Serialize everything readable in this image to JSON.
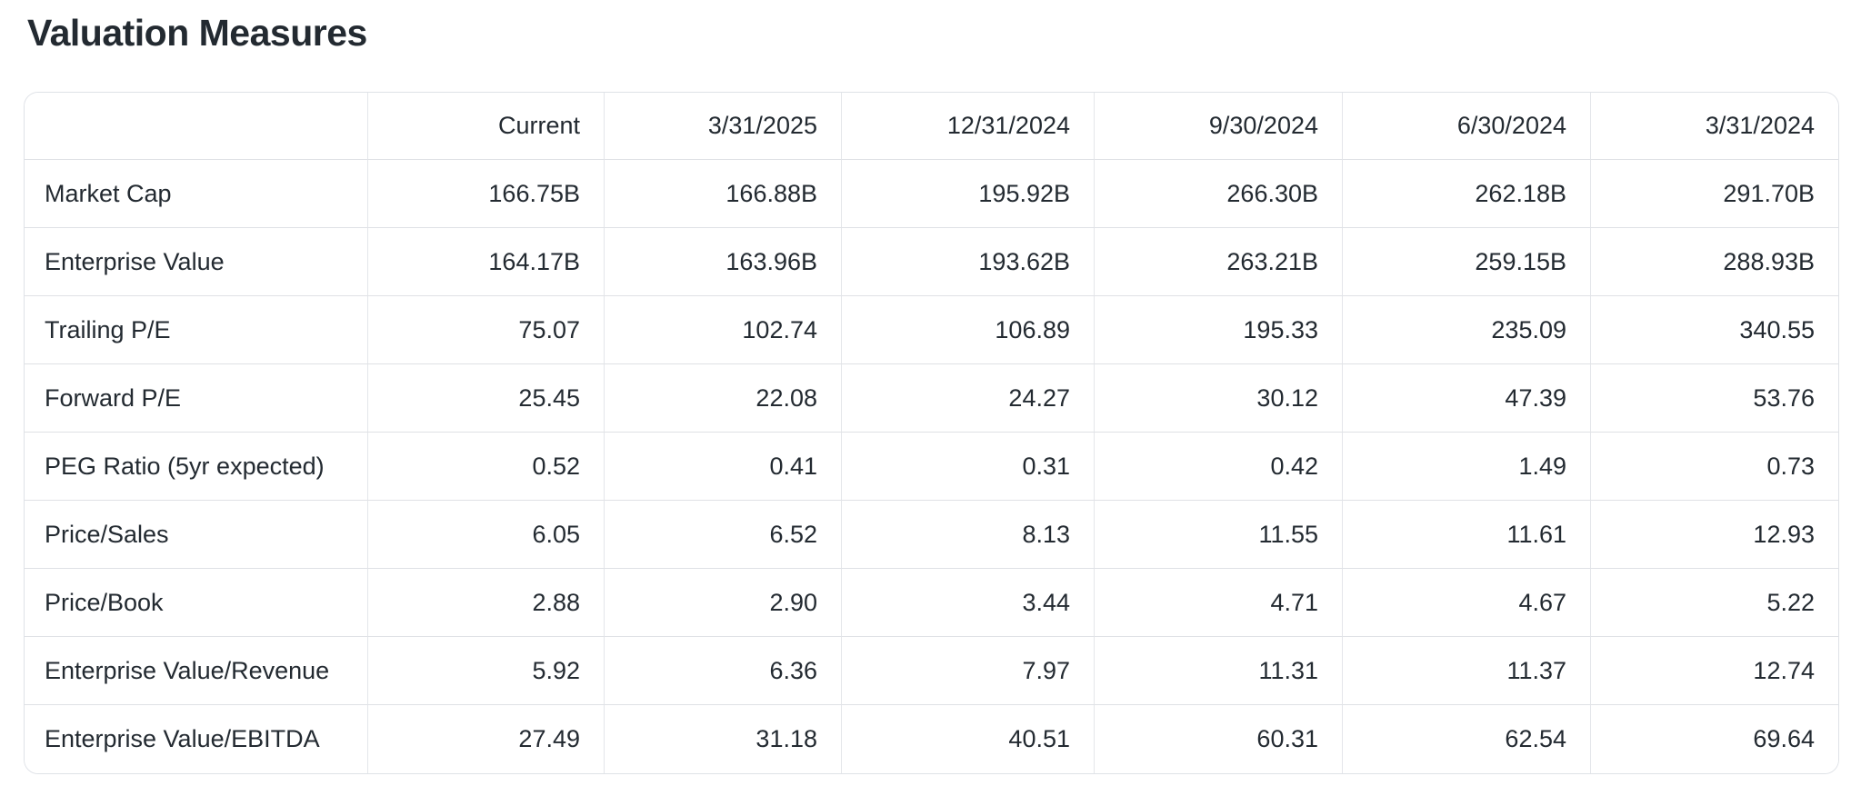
{
  "title": "Valuation Measures",
  "colors": {
    "text": "#232a31",
    "outer_border": "#dfe2e7",
    "column_divider": "#e4e6ea",
    "row_divider": "#dfe1e5",
    "background": "#ffffff"
  },
  "table": {
    "columns": [
      "",
      "Current",
      "3/31/2025",
      "12/31/2024",
      "9/30/2024",
      "6/30/2024",
      "3/31/2024"
    ],
    "rows": [
      {
        "label": "Market Cap",
        "values": [
          "166.75B",
          "166.88B",
          "195.92B",
          "266.30B",
          "262.18B",
          "291.70B"
        ]
      },
      {
        "label": "Enterprise Value",
        "values": [
          "164.17B",
          "163.96B",
          "193.62B",
          "263.21B",
          "259.15B",
          "288.93B"
        ]
      },
      {
        "label": "Trailing P/E",
        "values": [
          "75.07",
          "102.74",
          "106.89",
          "195.33",
          "235.09",
          "340.55"
        ]
      },
      {
        "label": "Forward P/E",
        "values": [
          "25.45",
          "22.08",
          "24.27",
          "30.12",
          "47.39",
          "53.76"
        ]
      },
      {
        "label": "PEG Ratio (5yr expected)",
        "values": [
          "0.52",
          "0.41",
          "0.31",
          "0.42",
          "1.49",
          "0.73"
        ]
      },
      {
        "label": "Price/Sales",
        "values": [
          "6.05",
          "6.52",
          "8.13",
          "11.55",
          "11.61",
          "12.93"
        ]
      },
      {
        "label": "Price/Book",
        "values": [
          "2.88",
          "2.90",
          "3.44",
          "4.71",
          "4.67",
          "5.22"
        ]
      },
      {
        "label": "Enterprise Value/Revenue",
        "values": [
          "5.92",
          "6.36",
          "7.97",
          "11.31",
          "11.37",
          "12.74"
        ]
      },
      {
        "label": "Enterprise Value/EBITDA",
        "values": [
          "27.49",
          "31.18",
          "40.51",
          "60.31",
          "62.54",
          "69.64"
        ]
      }
    ]
  }
}
